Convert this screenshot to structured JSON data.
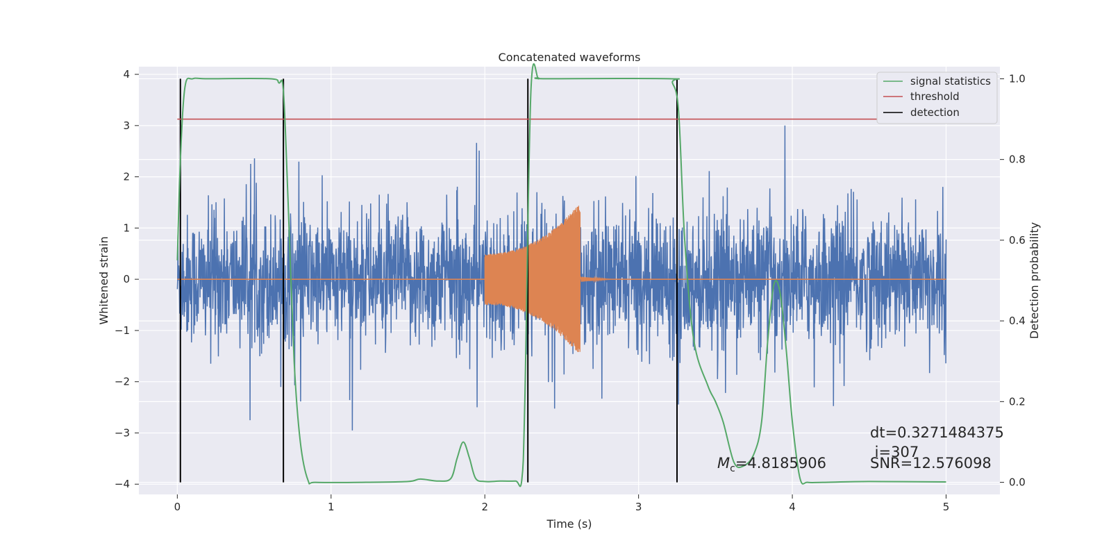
{
  "chart_data": {
    "type": "line",
    "title": "Concatenated waveforms",
    "xlabel": "Time (s)",
    "ylabel": "Whitened strain",
    "y2label": "Detection probability",
    "xlim": [
      -0.25,
      5.35
    ],
    "ylim": [
      -4.2,
      4.15
    ],
    "y2lim": [
      -0.03,
      1.03
    ],
    "xticks": [
      0,
      1,
      2,
      3,
      4,
      5
    ],
    "yticks": [
      -4,
      -3,
      -2,
      -1,
      0,
      1,
      2,
      3,
      4
    ],
    "y2ticks": [
      0.0,
      0.2,
      0.4,
      0.6,
      0.8,
      1.0
    ],
    "y2tick_labels": [
      "0.0",
      "0.2",
      "0.4",
      "0.6",
      "0.8",
      "1.0"
    ],
    "grid": true,
    "legend_position": "top-right",
    "legend": [
      {
        "label": "signal statistics",
        "color": "#55a868"
      },
      {
        "label": "threshold",
        "color": "#c44e52"
      },
      {
        "label": "detection",
        "color": "#000000"
      }
    ],
    "series": [
      {
        "name": "whitened strain (noise)",
        "axis": "left",
        "color": "#4c72b0",
        "x_range": [
          0,
          5
        ],
        "amplitude_typical": 1.2,
        "amplitude_peak": 3.4
      },
      {
        "name": "injected waveform",
        "axis": "left",
        "color": "#dd8452",
        "segments": [
          {
            "x": [
              0,
              2
            ],
            "value": 0
          },
          {
            "x": [
              2,
              2.62
            ],
            "amp_start": 0.5,
            "amp_end": 1.5
          },
          {
            "x": [
              2.62,
              5
            ],
            "value": 0
          }
        ]
      },
      {
        "name": "signal statistics",
        "axis": "right",
        "color": "#55a868",
        "x": [
          0,
          0.02,
          0.05,
          0.1,
          0.2,
          0.6,
          0.66,
          0.69,
          0.72,
          0.76,
          0.8,
          0.85,
          0.9,
          1.2,
          1.5,
          1.58,
          1.7,
          1.78,
          1.82,
          1.86,
          1.9,
          1.94,
          2.0,
          2.1,
          2.2,
          2.24,
          2.26,
          2.3,
          2.35,
          2.4,
          3.2,
          3.22,
          3.26,
          3.3,
          3.36,
          3.45,
          3.5,
          3.55,
          3.62,
          3.68,
          3.75,
          3.8,
          3.84,
          3.88,
          3.92,
          3.96,
          4.0,
          4.05,
          4.1,
          4.2,
          4.5,
          5.0
        ],
        "values": [
          0.55,
          0.8,
          0.98,
          1.0,
          1.0,
          1.0,
          0.99,
          0.97,
          0.7,
          0.3,
          0.1,
          0.005,
          0.0,
          0.0,
          0.002,
          0.008,
          0.003,
          0.01,
          0.06,
          0.1,
          0.06,
          0.01,
          0.002,
          0.003,
          0.003,
          0.005,
          0.2,
          0.97,
          1.0,
          1.0,
          1.0,
          0.99,
          0.92,
          0.6,
          0.35,
          0.24,
          0.2,
          0.15,
          0.05,
          0.04,
          0.07,
          0.15,
          0.35,
          0.49,
          0.47,
          0.33,
          0.15,
          0.01,
          0.0,
          0.0,
          0.002,
          0.001
        ]
      },
      {
        "name": "threshold",
        "axis": "right",
        "color": "#c44e52",
        "x": [
          0,
          5.1
        ],
        "values": [
          0.9,
          0.9
        ]
      },
      {
        "name": "detection",
        "axis": "right",
        "color": "#000000",
        "type": "vlines",
        "x": [
          0.02,
          0.69,
          2.28,
          3.25
        ],
        "y_range": [
          0,
          1
        ]
      }
    ],
    "annotations": [
      {
        "id": "dt",
        "text": "dt=0.3271484375",
        "x": 4.5,
        "y": -3.0
      },
      {
        "id": "i",
        "text": " i=307",
        "x": 4.5,
        "y": -3.4
      },
      {
        "id": "mc",
        "text_prefix": "M",
        "subscript": "c",
        "text_value": "=4.8185906",
        "x": 3.5,
        "y": -3.6
      },
      {
        "id": "snr",
        "text": "SNR=12.576098",
        "x": 4.5,
        "y": -3.6
      }
    ]
  },
  "colors": {
    "axes_background": "#eaeaf2",
    "grid": "#ffffff",
    "noise": "#4c72b0",
    "waveform": "#dd8452",
    "stat": "#55a868",
    "threshold": "#c44e52",
    "detection": "#000000"
  }
}
